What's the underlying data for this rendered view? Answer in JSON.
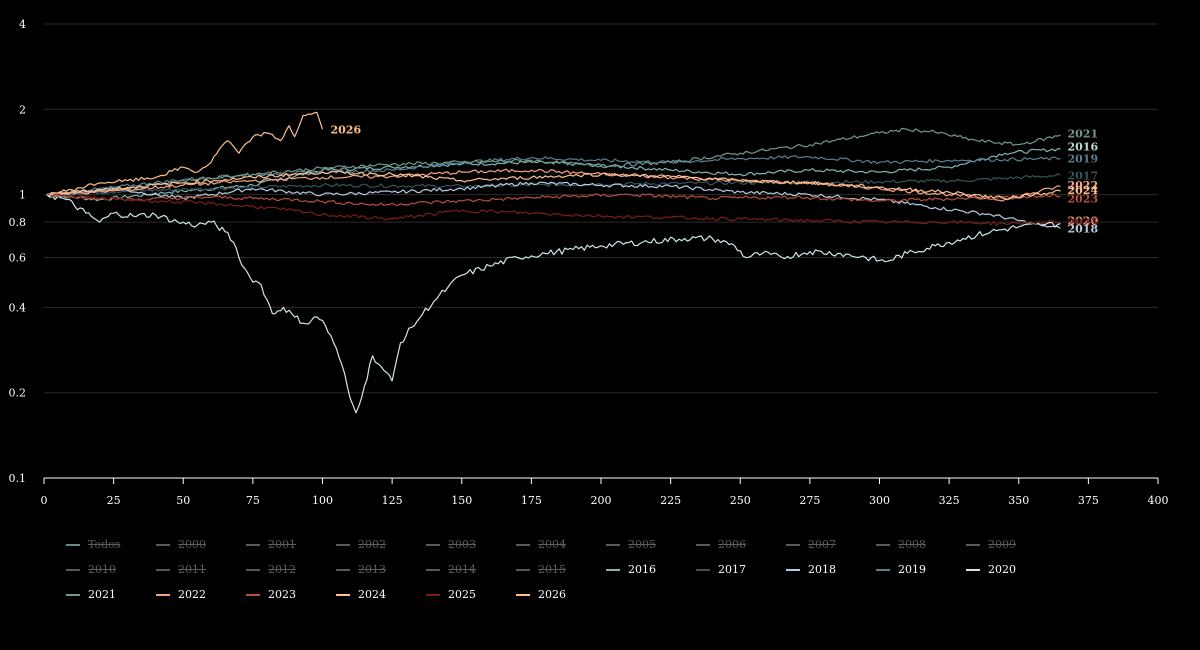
{
  "chart_data": {
    "type": "line",
    "title": "",
    "xlabel": "",
    "ylabel": "",
    "xlim": [
      0,
      400
    ],
    "ylim": [
      0.1,
      4
    ],
    "y_scale": "log",
    "grid": "horizontal",
    "legend_position": "bottom",
    "x_ticks": [
      0,
      25,
      50,
      75,
      100,
      125,
      150,
      175,
      200,
      225,
      250,
      275,
      300,
      325,
      350,
      375,
      400
    ],
    "y_ticks": [
      0.1,
      0.2,
      0.4,
      0.6,
      0.8,
      1,
      2,
      4
    ],
    "y_tick_labels": [
      "0.1",
      "0.2",
      "0.4",
      "0.6",
      "0.8",
      "1",
      "2",
      "4"
    ],
    "series": [
      {
        "name": "2016",
        "color": "#7fb7b3",
        "points": [
          [
            1,
            1.0
          ],
          [
            20,
            0.96
          ],
          [
            45,
            1.02
          ],
          [
            75,
            1.08
          ],
          [
            100,
            1.22
          ],
          [
            125,
            1.25
          ],
          [
            150,
            1.28
          ],
          [
            175,
            1.3
          ],
          [
            200,
            1.27
          ],
          [
            225,
            1.22
          ],
          [
            250,
            1.18
          ],
          [
            275,
            1.22
          ],
          [
            300,
            1.2
          ],
          [
            325,
            1.25
          ],
          [
            345,
            1.4
          ],
          [
            365,
            1.45
          ]
        ]
      },
      {
        "name": "2017",
        "color": "#35555a",
        "points": [
          [
            1,
            1.0
          ],
          [
            30,
            1.03
          ],
          [
            60,
            1.05
          ],
          [
            100,
            1.08
          ],
          [
            150,
            1.07
          ],
          [
            200,
            1.09
          ],
          [
            250,
            1.1
          ],
          [
            300,
            1.11
          ],
          [
            330,
            1.12
          ],
          [
            365,
            1.17
          ]
        ]
      },
      {
        "name": "2018",
        "color": "#b5cbe0",
        "points": [
          [
            1,
            1.0
          ],
          [
            25,
            1.05
          ],
          [
            50,
            0.97
          ],
          [
            75,
            1.05
          ],
          [
            100,
            1.0
          ],
          [
            125,
            1.02
          ],
          [
            150,
            1.05
          ],
          [
            175,
            1.1
          ],
          [
            200,
            1.08
          ],
          [
            225,
            1.07
          ],
          [
            250,
            1.02
          ],
          [
            275,
            1.0
          ],
          [
            300,
            0.96
          ],
          [
            320,
            0.9
          ],
          [
            340,
            0.85
          ],
          [
            355,
            0.79
          ],
          [
            365,
            0.76
          ]
        ]
      },
      {
        "name": "2019",
        "color": "#5a7f90",
        "points": [
          [
            1,
            1.0
          ],
          [
            25,
            1.06
          ],
          [
            50,
            1.13
          ],
          [
            75,
            1.18
          ],
          [
            100,
            1.2
          ],
          [
            125,
            1.22
          ],
          [
            150,
            1.3
          ],
          [
            175,
            1.35
          ],
          [
            200,
            1.32
          ],
          [
            225,
            1.3
          ],
          [
            250,
            1.34
          ],
          [
            275,
            1.36
          ],
          [
            300,
            1.3
          ],
          [
            325,
            1.32
          ],
          [
            345,
            1.33
          ],
          [
            365,
            1.34
          ]
        ]
      },
      {
        "name": "2020",
        "color": "#cfe7ea",
        "points": [
          [
            1,
            1.0
          ],
          [
            8,
            0.96
          ],
          [
            15,
            0.86
          ],
          [
            20,
            0.8
          ],
          [
            25,
            0.86
          ],
          [
            32,
            0.84
          ],
          [
            40,
            0.85
          ],
          [
            48,
            0.8
          ],
          [
            55,
            0.78
          ],
          [
            60,
            0.8
          ],
          [
            65,
            0.74
          ],
          [
            68,
            0.68
          ],
          [
            70,
            0.6
          ],
          [
            72,
            0.55
          ],
          [
            74,
            0.51
          ],
          [
            78,
            0.48
          ],
          [
            82,
            0.38
          ],
          [
            86,
            0.4
          ],
          [
            90,
            0.37
          ],
          [
            94,
            0.35
          ],
          [
            98,
            0.37
          ],
          [
            100,
            0.36
          ],
          [
            104,
            0.3
          ],
          [
            107,
            0.25
          ],
          [
            110,
            0.19
          ],
          [
            112,
            0.17
          ],
          [
            115,
            0.21
          ],
          [
            118,
            0.27
          ],
          [
            122,
            0.24
          ],
          [
            125,
            0.22
          ],
          [
            128,
            0.3
          ],
          [
            132,
            0.34
          ],
          [
            136,
            0.38
          ],
          [
            140,
            0.42
          ],
          [
            145,
            0.47
          ],
          [
            150,
            0.52
          ],
          [
            160,
            0.56
          ],
          [
            170,
            0.6
          ],
          [
            180,
            0.62
          ],
          [
            190,
            0.64
          ],
          [
            200,
            0.66
          ],
          [
            215,
            0.68
          ],
          [
            230,
            0.7
          ],
          [
            240,
            0.7
          ],
          [
            248,
            0.66
          ],
          [
            252,
            0.6
          ],
          [
            258,
            0.62
          ],
          [
            265,
            0.6
          ],
          [
            275,
            0.63
          ],
          [
            285,
            0.62
          ],
          [
            295,
            0.6
          ],
          [
            302,
            0.58
          ],
          [
            310,
            0.62
          ],
          [
            320,
            0.66
          ],
          [
            330,
            0.7
          ],
          [
            340,
            0.74
          ],
          [
            350,
            0.77
          ],
          [
            358,
            0.78
          ],
          [
            365,
            0.79
          ]
        ]
      },
      {
        "name": "2021",
        "color": "#6f9a91",
        "points": [
          [
            1,
            1.0
          ],
          [
            25,
            1.04
          ],
          [
            50,
            1.12
          ],
          [
            75,
            1.18
          ],
          [
            100,
            1.24
          ],
          [
            125,
            1.28
          ],
          [
            150,
            1.3
          ],
          [
            175,
            1.32
          ],
          [
            200,
            1.26
          ],
          [
            225,
            1.3
          ],
          [
            250,
            1.4
          ],
          [
            275,
            1.5
          ],
          [
            300,
            1.65
          ],
          [
            310,
            1.7
          ],
          [
            320,
            1.66
          ],
          [
            335,
            1.55
          ],
          [
            350,
            1.5
          ],
          [
            365,
            1.62
          ]
        ]
      },
      {
        "name": "2022",
        "color": "#f4a582",
        "points": [
          [
            1,
            1.0
          ],
          [
            25,
            1.03
          ],
          [
            50,
            1.08
          ],
          [
            75,
            1.12
          ],
          [
            100,
            1.15
          ],
          [
            125,
            1.16
          ],
          [
            150,
            1.2
          ],
          [
            175,
            1.22
          ],
          [
            200,
            1.18
          ],
          [
            225,
            1.15
          ],
          [
            250,
            1.12
          ],
          [
            275,
            1.1
          ],
          [
            300,
            1.05
          ],
          [
            325,
            1.0
          ],
          [
            345,
            0.96
          ],
          [
            365,
            1.07
          ]
        ]
      },
      {
        "name": "2023",
        "color": "#b5503a",
        "points": [
          [
            1,
            1.0
          ],
          [
            30,
            0.96
          ],
          [
            60,
            0.98
          ],
          [
            90,
            0.96
          ],
          [
            120,
            0.92
          ],
          [
            150,
            0.95
          ],
          [
            180,
            0.98
          ],
          [
            210,
            1.0
          ],
          [
            240,
            0.97
          ],
          [
            270,
            0.98
          ],
          [
            300,
            0.95
          ],
          [
            330,
            0.97
          ],
          [
            350,
            0.98
          ],
          [
            365,
            0.99
          ]
        ]
      },
      {
        "name": "2024",
        "color": "#fdbf93",
        "points": [
          [
            1,
            1.0
          ],
          [
            25,
            1.05
          ],
          [
            50,
            1.1
          ],
          [
            75,
            1.15
          ],
          [
            100,
            1.2
          ],
          [
            125,
            1.18
          ],
          [
            150,
            1.12
          ],
          [
            175,
            1.15
          ],
          [
            200,
            1.18
          ],
          [
            225,
            1.16
          ],
          [
            250,
            1.12
          ],
          [
            275,
            1.1
          ],
          [
            300,
            1.06
          ],
          [
            325,
            1.02
          ],
          [
            345,
            0.97
          ],
          [
            365,
            1.03
          ]
        ]
      },
      {
        "name": "2025",
        "color": "#7a1e16",
        "points": [
          [
            1,
            1.0
          ],
          [
            20,
            0.97
          ],
          [
            40,
            0.95
          ],
          [
            60,
            0.93
          ],
          [
            80,
            0.9
          ],
          [
            100,
            0.85
          ],
          [
            125,
            0.82
          ],
          [
            150,
            0.88
          ],
          [
            175,
            0.86
          ],
          [
            200,
            0.84
          ],
          [
            225,
            0.83
          ],
          [
            250,
            0.82
          ],
          [
            275,
            0.81
          ],
          [
            300,
            0.8
          ],
          [
            325,
            0.8
          ],
          [
            345,
            0.79
          ],
          [
            365,
            0.8
          ]
        ]
      },
      {
        "name": "2026",
        "color": "#fdc08a",
        "points": [
          [
            1,
            1.0
          ],
          [
            10,
            1.04
          ],
          [
            20,
            1.1
          ],
          [
            30,
            1.12
          ],
          [
            40,
            1.15
          ],
          [
            50,
            1.25
          ],
          [
            55,
            1.2
          ],
          [
            60,
            1.3
          ],
          [
            63,
            1.45
          ],
          [
            66,
            1.55
          ],
          [
            70,
            1.4
          ],
          [
            75,
            1.6
          ],
          [
            80,
            1.65
          ],
          [
            85,
            1.55
          ],
          [
            88,
            1.75
          ],
          [
            90,
            1.6
          ],
          [
            93,
            1.9
          ],
          [
            96,
            1.92
          ],
          [
            98,
            1.95
          ],
          [
            100,
            1.7
          ]
        ]
      }
    ],
    "end_labels": [
      {
        "text": "2021",
        "color": "#6f9a91",
        "y": 1.64
      },
      {
        "text": "2016",
        "color": "#b9dcd6",
        "y": 1.48
      },
      {
        "text": "2019",
        "color": "#5a7f90",
        "y": 1.34
      },
      {
        "text": "2017",
        "color": "#35555a",
        "y": 1.17
      },
      {
        "text": "2022",
        "color": "#f4a582",
        "y": 1.08
      },
      {
        "text": "2024",
        "color": "#fdbf93",
        "y": 1.04
      },
      {
        "text": "2023",
        "color": "#b5503a",
        "y": 0.97
      },
      {
        "text": "2020",
        "color": "#f4a582",
        "y": 0.81
      },
      {
        "text": "2025",
        "color": "#7a1e16",
        "y": 0.8
      },
      {
        "text": "2018",
        "color": "#b5cbe0",
        "y": 0.76
      }
    ],
    "annotation": {
      "text": "2026",
      "color": "#fdc08a",
      "x": 100,
      "y": 1.7
    }
  },
  "legend": {
    "rows": [
      [
        {
          "label": "Todos",
          "color": "#6a8a8a",
          "on": false
        },
        {
          "label": "2000",
          "color": "#5a5a5a",
          "on": false
        },
        {
          "label": "2001",
          "color": "#5a5a5a",
          "on": false
        },
        {
          "label": "2002",
          "color": "#5a5a5a",
          "on": false
        },
        {
          "label": "2003",
          "color": "#5a5a5a",
          "on": false
        },
        {
          "label": "2004",
          "color": "#5a5a5a",
          "on": false
        },
        {
          "label": "2005",
          "color": "#5a5a5a",
          "on": false
        },
        {
          "label": "2006",
          "color": "#5a5a5a",
          "on": false
        },
        {
          "label": "2007",
          "color": "#5a5a5a",
          "on": false
        },
        {
          "label": "2008",
          "color": "#5a5a5a",
          "on": false
        },
        {
          "label": "2009",
          "color": "#5a5a5a",
          "on": false
        }
      ],
      [
        {
          "label": "2010",
          "color": "#5a5a5a",
          "on": false
        },
        {
          "label": "2011",
          "color": "#5a5a5a",
          "on": false
        },
        {
          "label": "2012",
          "color": "#5a5a5a",
          "on": false
        },
        {
          "label": "2013",
          "color": "#5a5a5a",
          "on": false
        },
        {
          "label": "2014",
          "color": "#5a5a5a",
          "on": false
        },
        {
          "label": "2015",
          "color": "#5a5a5a",
          "on": false
        },
        {
          "label": "2016",
          "color": "#7fb7b3",
          "on": true
        },
        {
          "label": "2017",
          "color": "#35555a",
          "on": true
        },
        {
          "label": "2018",
          "color": "#b5cbe0",
          "on": true
        },
        {
          "label": "2019",
          "color": "#5a7f90",
          "on": true
        },
        {
          "label": "2020",
          "color": "#cfe7ea",
          "on": true
        }
      ],
      [
        {
          "label": "2021",
          "color": "#6f9a91",
          "on": true
        },
        {
          "label": "2022",
          "color": "#f4a582",
          "on": true
        },
        {
          "label": "2023",
          "color": "#b5503a",
          "on": true
        },
        {
          "label": "2024",
          "color": "#fdbf93",
          "on": true
        },
        {
          "label": "2025",
          "color": "#7a1e16",
          "on": true
        },
        {
          "label": "2026",
          "color": "#fdc08a",
          "on": true
        }
      ]
    ]
  }
}
